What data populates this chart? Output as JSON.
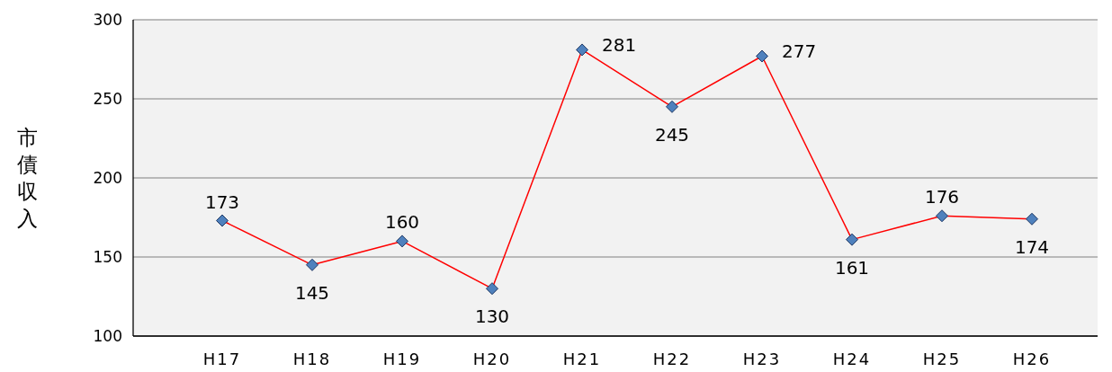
{
  "chart_data": {
    "type": "line",
    "ylabel": "市債収入",
    "categories": [
      "H17",
      "H18",
      "H19",
      "H20",
      "H21",
      "H22",
      "H23",
      "H24",
      "H25",
      "H26"
    ],
    "series": [
      {
        "color": "#ff0000",
        "values": [
          173,
          145,
          160,
          130,
          281,
          245,
          277,
          161,
          176,
          174
        ]
      }
    ],
    "ylim": [
      100,
      300
    ],
    "yticks": [
      100,
      150,
      200,
      250,
      300
    ],
    "grid": "y",
    "marker": "diamond",
    "line_style": "solid",
    "data_labels": true
  }
}
